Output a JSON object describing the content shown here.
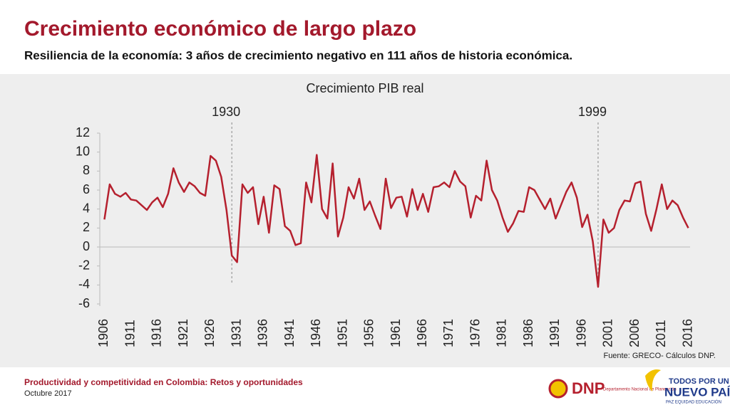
{
  "header": {
    "title": "Crecimiento económico de largo plazo",
    "subtitle": "Resiliencia de la economía: 3 años de crecimiento negativo en 111 años de historia económica."
  },
  "chart_data": {
    "type": "line",
    "title": "Crecimiento PIB real",
    "color": "#b5202e",
    "x": [
      1906,
      1907,
      1908,
      1909,
      1910,
      1911,
      1912,
      1913,
      1914,
      1915,
      1916,
      1917,
      1918,
      1919,
      1920,
      1921,
      1922,
      1923,
      1924,
      1925,
      1926,
      1927,
      1928,
      1929,
      1930,
      1931,
      1932,
      1933,
      1934,
      1935,
      1936,
      1937,
      1938,
      1939,
      1940,
      1941,
      1942,
      1943,
      1944,
      1945,
      1946,
      1947,
      1948,
      1949,
      1950,
      1951,
      1952,
      1953,
      1954,
      1955,
      1956,
      1957,
      1958,
      1959,
      1960,
      1961,
      1962,
      1963,
      1964,
      1965,
      1966,
      1967,
      1968,
      1969,
      1970,
      1971,
      1972,
      1973,
      1974,
      1975,
      1976,
      1977,
      1978,
      1979,
      1980,
      1981,
      1982,
      1983,
      1984,
      1985,
      1986,
      1987,
      1988,
      1989,
      1990,
      1991,
      1992,
      1993,
      1994,
      1995,
      1996,
      1997,
      1998,
      1999,
      2000,
      2001,
      2002,
      2003,
      2004,
      2005,
      2006,
      2007,
      2008,
      2009,
      2010,
      2011,
      2012,
      2013,
      2014,
      2015,
      2016
    ],
    "values": [
      2.9,
      6.6,
      5.6,
      5.3,
      5.7,
      5.0,
      4.9,
      4.4,
      3.9,
      4.7,
      5.2,
      4.2,
      5.6,
      8.3,
      6.8,
      5.8,
      6.8,
      6.4,
      5.7,
      5.4,
      9.6,
      9.1,
      7.4,
      3.9,
      -0.9,
      -1.6,
      6.6,
      5.7,
      6.3,
      2.4,
      5.3,
      1.5,
      6.5,
      6.1,
      2.2,
      1.7,
      0.2,
      0.4,
      6.8,
      4.7,
      9.7,
      4.0,
      3.0,
      8.8,
      1.1,
      3.1,
      6.3,
      5.1,
      7.2,
      3.9,
      4.8,
      3.3,
      1.9,
      7.2,
      4.1,
      5.2,
      5.3,
      3.2,
      6.1,
      3.9,
      5.6,
      3.7,
      6.3,
      6.4,
      6.8,
      6.3,
      8.0,
      6.9,
      6.4,
      3.1,
      5.4,
      4.9,
      9.1,
      6.0,
      4.9,
      3.1,
      1.6,
      2.5,
      3.8,
      3.7,
      6.3,
      6.0,
      5.0,
      4.0,
      5.1,
      3.0,
      4.4,
      5.8,
      6.8,
      5.2,
      2.1,
      3.4,
      0.6,
      -4.2,
      2.9,
      1.5,
      2.0,
      3.9,
      4.9,
      4.8,
      6.7,
      6.9,
      3.5,
      1.7,
      4.0,
      6.6,
      4.0,
      4.9,
      4.4,
      3.1,
      2.0
    ],
    "xlim": [
      1905,
      2017
    ],
    "xticks": [
      1906,
      1911,
      1916,
      1921,
      1926,
      1931,
      1936,
      1941,
      1946,
      1951,
      1956,
      1961,
      1966,
      1971,
      1976,
      1981,
      1986,
      1991,
      1996,
      2001,
      2006,
      2011,
      2016
    ],
    "ylim": [
      -6,
      12
    ],
    "yticks": [
      -6,
      -4,
      -2,
      0,
      2,
      4,
      6,
      8,
      10,
      12
    ],
    "vlines": [
      1930,
      1999
    ],
    "source": "Fuente: GRECO-  Cálculos DNP."
  },
  "footer": {
    "title": "Productividad y competitividad en Colombia: Retos y oportunidades",
    "date": "Octubre 2017",
    "logo1": "DNP",
    "logo1_sub": "Departamento Nacional de Planeación",
    "logo2_top": "TODOS POR UN",
    "logo2_main": "NUEVO PAÍS",
    "logo2_sub": "PAZ  EQUIDAD  EDUCACIÓN"
  }
}
